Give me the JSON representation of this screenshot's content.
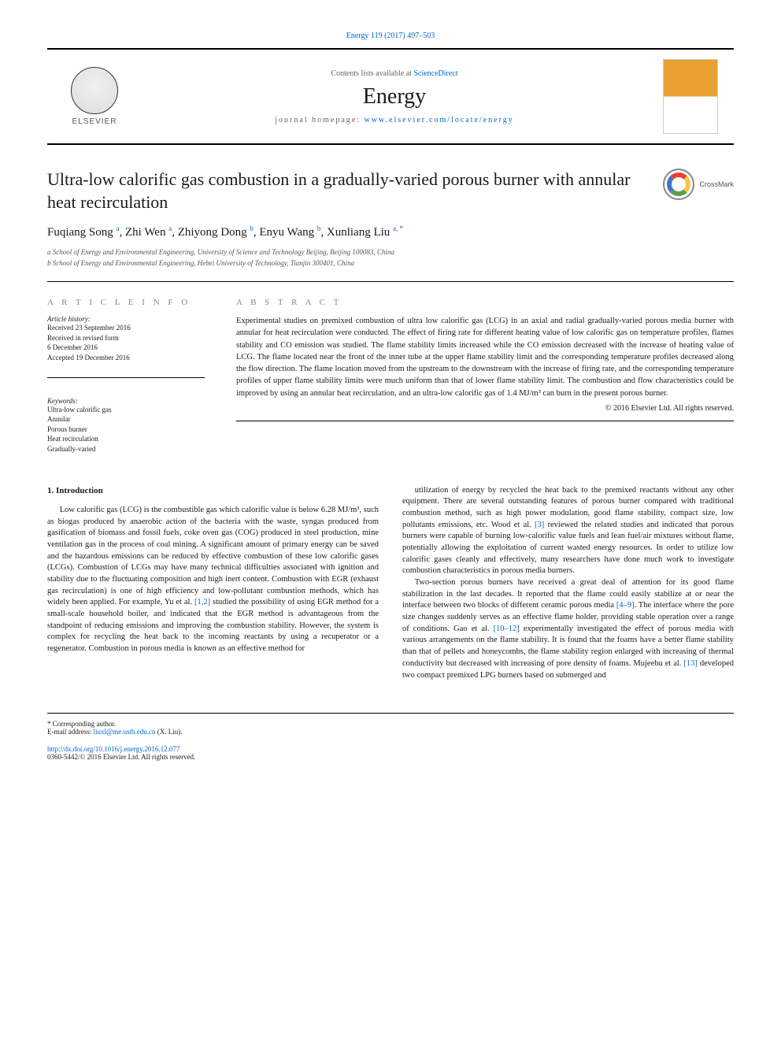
{
  "citation": "Energy 119 (2017) 497–503",
  "header": {
    "contents_prefix": "Contents lists available at ",
    "contents_link": "ScienceDirect",
    "journal": "Energy",
    "homepage_prefix": "journal homepage: ",
    "homepage_link": "www.elsevier.com/locate/energy",
    "publisher_label": "ELSEVIER"
  },
  "article": {
    "title": "Ultra-low calorific gas combustion in a gradually-varied porous burner with annular heat recirculation",
    "crossmark_label": "CrossMark",
    "authors_html": "Fuqiang Song <sup>a</sup>, Zhi Wen <sup>a</sup>, Zhiyong Dong <sup>b</sup>, Enyu Wang <sup>b</sup>, Xunliang Liu <sup>a, *</sup>",
    "affiliations": [
      "a School of Energy and Environmental Engineering, University of Science and Technology Beijing, Beijing 100083, China",
      "b School of Energy and Environmental Engineering, Hebei University of Technology, Tianjin 300401, China"
    ]
  },
  "article_info": {
    "label": "A R T I C L E   I N F O",
    "history_head": "Article history:",
    "history": [
      "Received 23 September 2016",
      "Received in revised form",
      "6 December 2016",
      "Accepted 19 December 2016"
    ],
    "keywords_head": "Keywords:",
    "keywords": [
      "Ultra-low calorific gas",
      "Annular",
      "Porous burner",
      "Heat recirculation",
      "Gradually-varied"
    ]
  },
  "abstract": {
    "label": "A B S T R A C T",
    "text": "Experimental studies on premixed combustion of ultra low calorific gas (LCG) in an axial and radial gradually-varied porous media burner with annular for heat recirculation were conducted. The effect of firing rate for different heating value of low calorific gas on temperature profiles, flames stability and CO emission was studied. The flame stability limits increased while the CO emission decreased with the increase of heating value of LCG. The flame located near the front of the inner tube at the upper flame stability limit and the corresponding temperature profiles decreased along the flow direction. The flame location moved from the upstream to the downstream with the increase of firing rate, and the corresponding temperature profiles of upper flame stability limits were much uniform than that of lower flame stability limit. The combustion and flow characteristics could be improved by using an annular heat recirculation, and an ultra-low calorific gas of 1.4 MJ/m³ can burn in the present porous burner.",
    "copyright": "© 2016 Elsevier Ltd. All rights reserved."
  },
  "body": {
    "intro_head": "1. Introduction",
    "col1_p1": "Low calorific gas (LCG) is the combustible gas which calorific value is below 6.28 MJ/m³, such as biogas produced by anaerobic action of the bacteria with the waste, syngas produced from gasification of biomass and fossil fuels, coke oven gas (COG) produced in steel production, mine ventilation gas in the process of coal mining. A significant amount of primary energy can be saved and the hazardous emissions can be reduced by effective combustion of these low calorific gases (LCGs). Combustion of LCGs may have many technical difficulties associated with ignition and stability due to the fluctuating composition and high inert content. Combustion with EGR (exhaust gas recirculation) is one of high efficiency and low-pollutant combustion methods, which has widely been applied. For example, Yu et al. [1,2] studied the possibility of using EGR method for a small-scale household boiler, and indicated that the EGR method is advantageous from the standpoint of reducing emissions and improving the combustion stability. However, the system is complex for recycling the heat back to the incoming reactants by using a recuperator or a regenerator. Combustion in porous media is known as an effective method for",
    "col2_p1": "utilization of energy by recycled the heat back to the premixed reactants without any other equipment. There are several outstanding features of porous burner compared with traditional combustion method, such as high power modulation, good flame stability, compact size, low pollutants emissions, etc. Wood et al. [3] reviewed the related studies and indicated that porous burners were capable of burning low-calorific value fuels and lean fuel/air mixtures without flame, potentially allowing the exploitation of current wasted energy resources. In order to utilize low calorific gases cleanly and effectively, many researchers have done much work to investigate combustion characteristics in porous media burners.",
    "col2_p2": "Two-section porous burners have received a great deal of attention for its good flame stabilization in the last decades. It reported that the flame could easily stabilize at or near the interface between two blocks of different ceramic porous media [4–9]. The interface where the pore size changes suddenly serves as an effective flame holder, providing stable operation over a range of conditions. Gao et al. [10–12] experimentally investigated the effect of porous media with various arrangements on the flame stability. It is found that the foams have a better flame stability than that of pellets and honeycombs, the flame stability region enlarged with increasing of thermal conductivity but decreased with increasing of pore density of foams. Mujeebu et al. [13] developed two compact premixed LPG burners based on submerged and"
  },
  "footer": {
    "corr_label": "* Corresponding author.",
    "email_label": "E-mail address: ",
    "email": "liuxl@me.ustb.edu.cn",
    "email_name": " (X. Liu).",
    "doi": "http://dx.doi.org/10.1016/j.energy.2016.12.077",
    "issn_copyright": "0360-5442/© 2016 Elsevier Ltd. All rights reserved."
  },
  "colors": {
    "link": "#0066cc",
    "text": "#1a1a1a",
    "rule": "#000000",
    "muted": "#666666"
  }
}
